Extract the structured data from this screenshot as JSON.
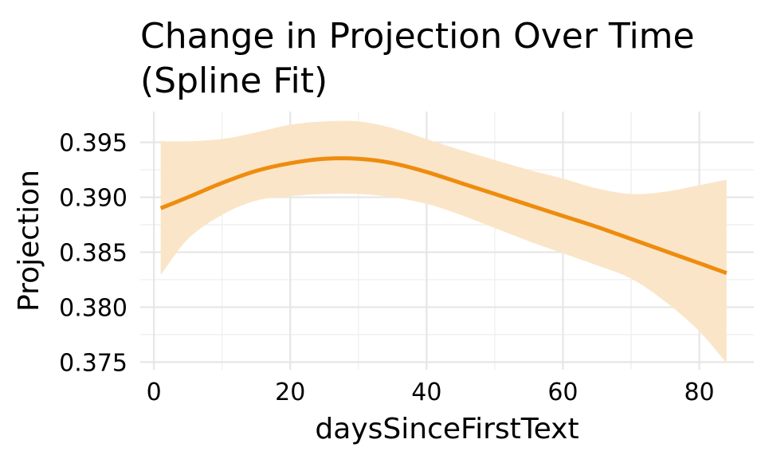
{
  "chart_data": {
    "type": "line",
    "title_lines": [
      "Change in Projection Over Time",
      "(Spline Fit)"
    ],
    "xlabel": "daysSinceFirstText",
    "ylabel": "Projection",
    "xlim": [
      -2,
      88
    ],
    "ylim": [
      0.3743,
      0.3978
    ],
    "x_ticks": [
      0,
      20,
      40,
      60,
      80
    ],
    "y_ticks": [
      0.375,
      0.38,
      0.385,
      0.39,
      0.395
    ],
    "y_tick_labels": [
      "0.375",
      "0.380",
      "0.385",
      "0.390",
      "0.395"
    ],
    "grid": true,
    "colors": {
      "line": "#ee8c0e",
      "band": "#fbe5c8"
    },
    "series": [
      {
        "x": [
          1,
          5,
          10,
          15,
          20,
          25,
          30,
          35,
          40,
          45,
          50,
          55,
          60,
          65,
          70,
          75,
          80,
          84
        ],
        "y": [
          0.389,
          0.39,
          0.3913,
          0.3924,
          0.3931,
          0.3935,
          0.3935,
          0.3931,
          0.3923,
          0.3913,
          0.3903,
          0.3893,
          0.3883,
          0.3873,
          0.3862,
          0.3851,
          0.384,
          0.3831
        ],
        "lower": [
          0.3829,
          0.3862,
          0.3884,
          0.3897,
          0.3901,
          0.3903,
          0.3903,
          0.39,
          0.3894,
          0.3884,
          0.3872,
          0.386,
          0.3849,
          0.3838,
          0.3826,
          0.3805,
          0.3778,
          0.3749
        ],
        "upper": [
          0.3951,
          0.3951,
          0.3953,
          0.3959,
          0.3966,
          0.3969,
          0.3969,
          0.3963,
          0.3953,
          0.3943,
          0.3934,
          0.3925,
          0.3917,
          0.3908,
          0.3903,
          0.3905,
          0.3911,
          0.3916
        ]
      }
    ]
  }
}
